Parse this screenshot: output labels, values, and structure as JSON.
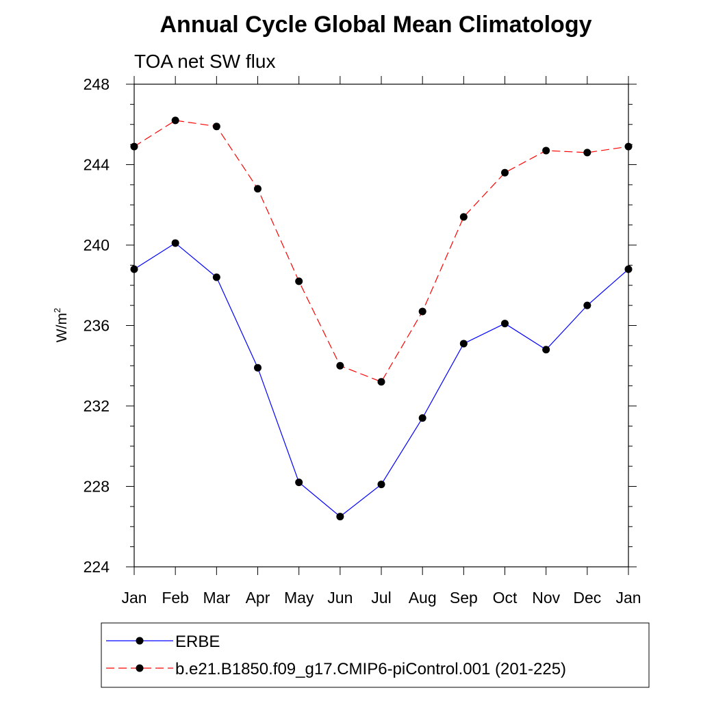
{
  "chart_data": {
    "type": "line",
    "title": "Annual Cycle Global Mean Climatology",
    "subtitle": "TOA net SW flux",
    "ylabel": "W/m",
    "ylabel_superscript": "2",
    "xlabel": "",
    "categories": [
      "Jan",
      "Feb",
      "Mar",
      "Apr",
      "May",
      "Jun",
      "Jul",
      "Aug",
      "Sep",
      "Oct",
      "Nov",
      "Dec",
      "Jan"
    ],
    "ylim": [
      224,
      248
    ],
    "yticks": [
      224,
      228,
      232,
      236,
      240,
      244,
      248
    ],
    "grid": false,
    "legend_position": "bottom",
    "series": [
      {
        "name": "ERBE",
        "color": "#0000ff",
        "line_style": "solid",
        "marker": "filled-circle",
        "values": [
          238.8,
          240.1,
          238.4,
          233.9,
          228.2,
          226.5,
          228.1,
          231.4,
          235.1,
          236.1,
          234.8,
          237.0,
          238.8
        ]
      },
      {
        "name": "b.e21.B1850.f09_g17.CMIP6-piControl.001 (201-225)",
        "color": "#ff0000",
        "line_style": "dashed",
        "marker": "filled-circle",
        "values": [
          244.9,
          246.2,
          245.9,
          242.8,
          238.2,
          234.0,
          233.2,
          236.7,
          241.4,
          243.6,
          244.7,
          244.6,
          244.9
        ]
      }
    ]
  }
}
